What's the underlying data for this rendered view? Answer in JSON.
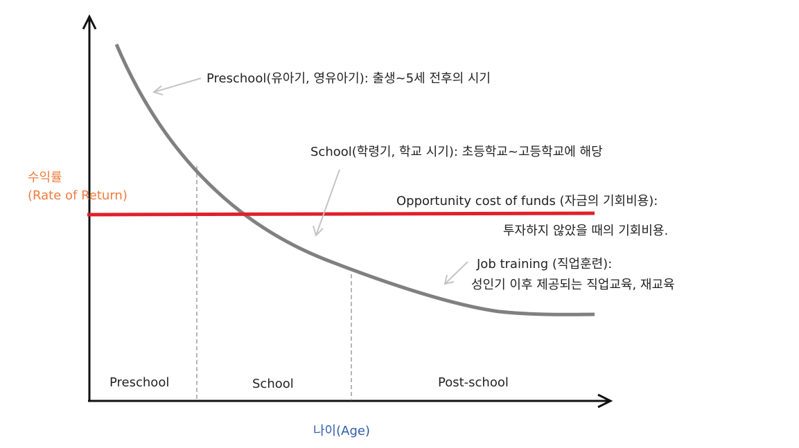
{
  "colors": {
    "curve": "#808080",
    "opportunity_line": "#e0202a",
    "axis": "#111111",
    "arrow_pointer": "#c8c8c8",
    "divider": "#b0b0b0",
    "y_label": "#f07a3c",
    "x_label": "#2f5ca8"
  },
  "axes": {
    "y_label_line1": "수익률",
    "y_label_line2": "(Rate of Return)",
    "x_label": "나이(Age)"
  },
  "zones": [
    "Preschool",
    "School",
    "Post-school"
  ],
  "annotations": {
    "preschool": "Preschool(유아기, 영유아기): 출생~5세 전후의 시기",
    "school": "School(학령기, 학교 시기): 초등학교~고등학교에 해당",
    "opportunity_line1": "Opportunity cost of funds (자금의 기회비용):",
    "opportunity_line2": "투자하지 않았을 때의 기회비용.",
    "job_line1": "Job training (직업훈련):",
    "job_line2": "성인기 이후 제공되는 직업교육, 재교육"
  },
  "icons": {
    "pointer": "arrow-pointer-icon"
  }
}
